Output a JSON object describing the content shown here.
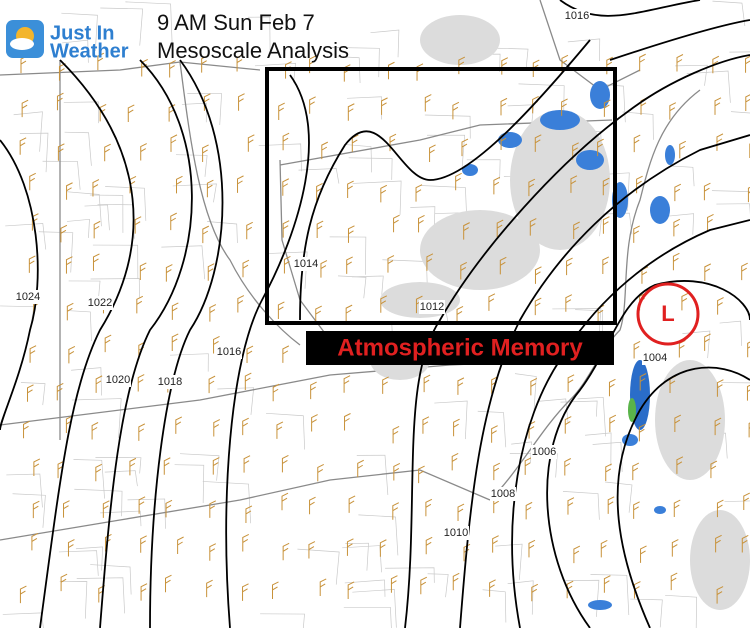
{
  "logo": {
    "line1": "Just In",
    "line2": "Weather"
  },
  "header": {
    "title": "9 AM Sun Feb 7",
    "subtitle": "Mesoscale Analysis"
  },
  "annotations": {
    "box_label": "Atmospheric Memory",
    "low": "L"
  },
  "isobars": [
    {
      "label": "1016"
    },
    {
      "label": "1014"
    },
    {
      "label": "1012"
    },
    {
      "label": "1024"
    },
    {
      "label": "1022"
    },
    {
      "label": "1020"
    },
    {
      "label": "1018"
    },
    {
      "label": "1016"
    },
    {
      "label": "1004"
    },
    {
      "label": "1006"
    },
    {
      "label": "1008"
    },
    {
      "label": "1010"
    }
  ]
}
